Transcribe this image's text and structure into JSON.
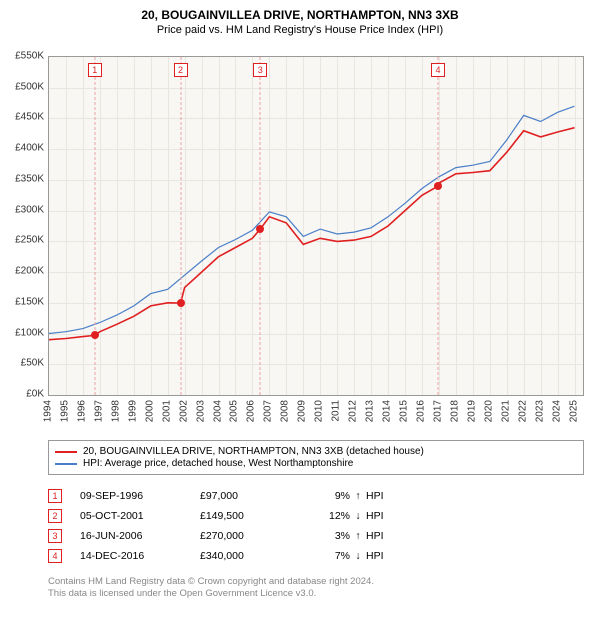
{
  "title": "20, BOUGAINVILLEA DRIVE, NORTHAMPTON, NN3 3XB",
  "subtitle": "Price paid vs. HM Land Registry's House Price Index (HPI)",
  "chart": {
    "type": "line",
    "background_color": "#f8f7f3",
    "grid_color": "#e8e6df",
    "border_color": "#999999",
    "x_years": [
      1994,
      1995,
      1996,
      1997,
      1998,
      1999,
      2000,
      2001,
      2002,
      2003,
      2004,
      2005,
      2006,
      2007,
      2008,
      2009,
      2010,
      2011,
      2012,
      2013,
      2014,
      2015,
      2016,
      2017,
      2018,
      2019,
      2020,
      2021,
      2022,
      2023,
      2024,
      2025
    ],
    "xlim": [
      1994,
      2025.5
    ],
    "ylim": [
      0,
      550
    ],
    "ytick_step": 50,
    "ytick_prefix": "£",
    "ytick_suffix": "K",
    "series": [
      {
        "name": "price_paid",
        "label": "20, BOUGAINVILLEA DRIVE, NORTHAMPTON, NN3 3XB (detached house)",
        "color": "#e02020",
        "line_width": 1.6,
        "x": [
          1994,
          1995,
          1996,
          1996.7,
          1997,
          1998,
          1999,
          2000,
          2001,
          2001.76,
          2002,
          2003,
          2004,
          2005,
          2006,
          2006.46,
          2007,
          2008,
          2009,
          2010,
          2011,
          2012,
          2013,
          2014,
          2015,
          2016,
          2016.95,
          2017,
          2018,
          2019,
          2020,
          2021,
          2022,
          2023,
          2024,
          2025
        ],
        "y": [
          90,
          92,
          95,
          97,
          103,
          115,
          128,
          145,
          150,
          149.5,
          175,
          200,
          225,
          240,
          255,
          270,
          290,
          280,
          245,
          255,
          250,
          252,
          258,
          275,
          300,
          325,
          340,
          345,
          360,
          362,
          365,
          395,
          430,
          420,
          428,
          435
        ]
      },
      {
        "name": "hpi",
        "label": "HPI: Average price, detached house, West Northamptonshire",
        "color": "#4a7ec8",
        "line_width": 1.2,
        "x": [
          1994,
          1995,
          1996,
          1997,
          1998,
          1999,
          2000,
          2001,
          2002,
          2003,
          2004,
          2005,
          2006,
          2007,
          2008,
          2009,
          2010,
          2011,
          2012,
          2013,
          2014,
          2015,
          2016,
          2017,
          2018,
          2019,
          2020,
          2021,
          2022,
          2023,
          2024,
          2025
        ],
        "y": [
          100,
          103,
          108,
          118,
          130,
          145,
          165,
          172,
          195,
          218,
          240,
          253,
          268,
          298,
          290,
          258,
          270,
          262,
          265,
          272,
          290,
          312,
          336,
          355,
          370,
          374,
          380,
          415,
          455,
          445,
          460,
          470
        ]
      }
    ],
    "sale_markers": [
      {
        "n": "1",
        "year": 1996.7,
        "value": 97
      },
      {
        "n": "2",
        "year": 2001.76,
        "value": 149.5
      },
      {
        "n": "3",
        "year": 2006.46,
        "value": 270
      },
      {
        "n": "4",
        "year": 2016.95,
        "value": 340
      }
    ],
    "marker_box_color": "#e02020",
    "dot_color": "#e02020"
  },
  "legend": {
    "items": [
      {
        "color": "#e02020",
        "label": "20, BOUGAINVILLEA DRIVE, NORTHAMPTON, NN3 3XB (detached house)"
      },
      {
        "color": "#4a7ec8",
        "label": "HPI: Average price, detached house, West Northamptonshire"
      }
    ]
  },
  "sales": [
    {
      "n": "1",
      "date": "09-SEP-1996",
      "price": "£97,000",
      "pct": "9%",
      "arrow": "↑",
      "suffix": "HPI"
    },
    {
      "n": "2",
      "date": "05-OCT-2001",
      "price": "£149,500",
      "pct": "12%",
      "arrow": "↓",
      "suffix": "HPI"
    },
    {
      "n": "3",
      "date": "16-JUN-2006",
      "price": "£270,000",
      "pct": "3%",
      "arrow": "↑",
      "suffix": "HPI"
    },
    {
      "n": "4",
      "date": "14-DEC-2016",
      "price": "£340,000",
      "pct": "7%",
      "arrow": "↓",
      "suffix": "HPI"
    }
  ],
  "footer": {
    "line1": "Contains HM Land Registry data © Crown copyright and database right 2024.",
    "line2": "This data is licensed under the Open Government Licence v3.0."
  },
  "style": {
    "title_fontsize": 12,
    "subtitle_fontsize": 11,
    "tick_fontsize": 10,
    "legend_fontsize": 10,
    "footer_color": "#888888"
  }
}
